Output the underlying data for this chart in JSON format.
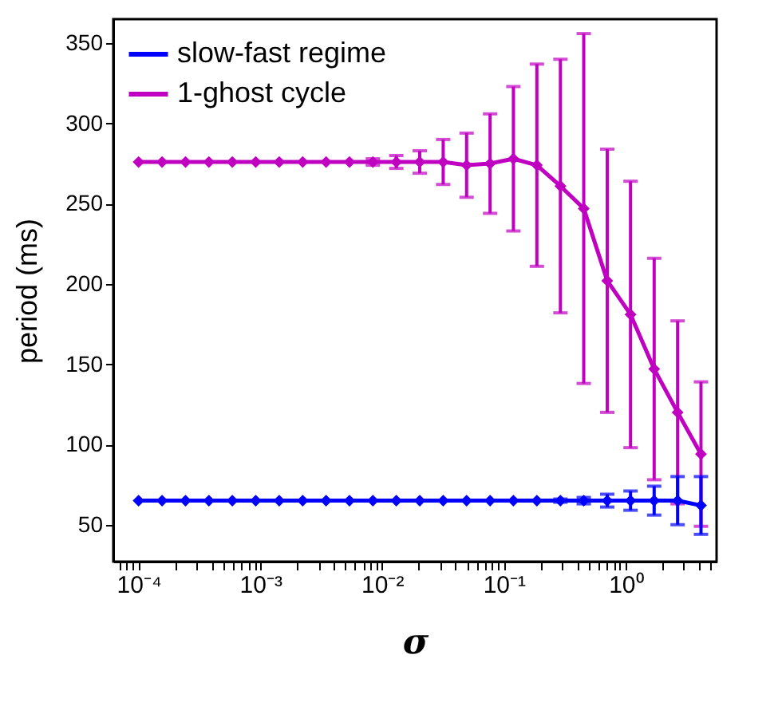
{
  "chart_data": {
    "type": "line",
    "xlabel": "σ",
    "ylabel": "period (ms)",
    "log": "x",
    "grid": false,
    "legend": "top left",
    "marker": "diamond",
    "line_style": "solid",
    "x": [
      0.0001,
      0.000156,
      0.000243,
      0.000378,
      0.000589,
      0.000917,
      0.00143,
      0.00223,
      0.00347,
      0.0054,
      0.00841,
      0.0131,
      0.0204,
      0.0318,
      0.0495,
      0.0772,
      0.12,
      0.187,
      0.292,
      0.454,
      0.708,
      1.1,
      1.72,
      2.68,
      4.17
    ],
    "series": [
      {
        "name": "slow-fast regime",
        "color": "#0000ff",
        "values": [
          65,
          65,
          65,
          65,
          65,
          65,
          65,
          65,
          65,
          65,
          65,
          65,
          65,
          65,
          65,
          65,
          65,
          65,
          65,
          65,
          65,
          65,
          65,
          65,
          62
        ],
        "errors": [
          null,
          null,
          null,
          null,
          null,
          null,
          null,
          null,
          null,
          null,
          null,
          null,
          null,
          null,
          null,
          null,
          null,
          null,
          1,
          2,
          4,
          6,
          9,
          15,
          18
        ]
      },
      {
        "name": "1-ghost cycle",
        "color": "#c000c0",
        "values": [
          276,
          276,
          276,
          276,
          276,
          276,
          276,
          276,
          276,
          276,
          276,
          276,
          276,
          276,
          274,
          275,
          278,
          274,
          261,
          247,
          202,
          181,
          147,
          120,
          94
        ],
        "errors": [
          null,
          null,
          null,
          null,
          null,
          null,
          null,
          null,
          null,
          null,
          2,
          4,
          7,
          14,
          20,
          31,
          45,
          63,
          79,
          109,
          82,
          83,
          69,
          57,
          45
        ]
      }
    ],
    "xlim": [
      6.2e-05,
      5.6
    ],
    "ylim": [
      27,
      365
    ],
    "yticks": [
      50,
      100,
      150,
      200,
      250,
      300,
      350
    ],
    "xticks": [
      {
        "value": 7e-05,
        "label": null
      },
      {
        "value": 8e-05,
        "label": null
      },
      {
        "value": 9e-05,
        "label": null
      },
      {
        "value": 0.0001,
        "label": "10⁻⁴"
      },
      {
        "value": 0.0002,
        "label": null
      },
      {
        "value": 0.0003,
        "label": null
      },
      {
        "value": 0.0004,
        "label": null
      },
      {
        "value": 0.0005,
        "label": null
      },
      {
        "value": 0.0006,
        "label": null
      },
      {
        "value": 0.0007,
        "label": null
      },
      {
        "value": 0.0008,
        "label": null
      },
      {
        "value": 0.0009,
        "label": null
      },
      {
        "value": 0.001,
        "label": "10⁻³"
      },
      {
        "value": 0.002,
        "label": null
      },
      {
        "value": 0.003,
        "label": null
      },
      {
        "value": 0.004,
        "label": null
      },
      {
        "value": 0.005,
        "label": null
      },
      {
        "value": 0.006,
        "label": null
      },
      {
        "value": 0.007,
        "label": null
      },
      {
        "value": 0.008,
        "label": null
      },
      {
        "value": 0.009,
        "label": null
      },
      {
        "value": 0.01,
        "label": "10⁻²"
      },
      {
        "value": 0.02,
        "label": null
      },
      {
        "value": 0.03,
        "label": null
      },
      {
        "value": 0.04,
        "label": null
      },
      {
        "value": 0.05,
        "label": null
      },
      {
        "value": 0.06,
        "label": null
      },
      {
        "value": 0.07,
        "label": null
      },
      {
        "value": 0.08,
        "label": null
      },
      {
        "value": 0.09,
        "label": null
      },
      {
        "value": 0.1,
        "label": "10⁻¹"
      },
      {
        "value": 0.2,
        "label": null
      },
      {
        "value": 0.3,
        "label": null
      },
      {
        "value": 0.4,
        "label": null
      },
      {
        "value": 0.5,
        "label": null
      },
      {
        "value": 0.6,
        "label": null
      },
      {
        "value": 0.7,
        "label": null
      },
      {
        "value": 0.8,
        "label": null
      },
      {
        "value": 0.9,
        "label": null
      },
      {
        "value": 1,
        "label": "10⁰"
      },
      {
        "value": 2,
        "label": null
      },
      {
        "value": 3,
        "label": null
      },
      {
        "value": 4,
        "label": null
      },
      {
        "value": 5,
        "label": null
      }
    ]
  }
}
